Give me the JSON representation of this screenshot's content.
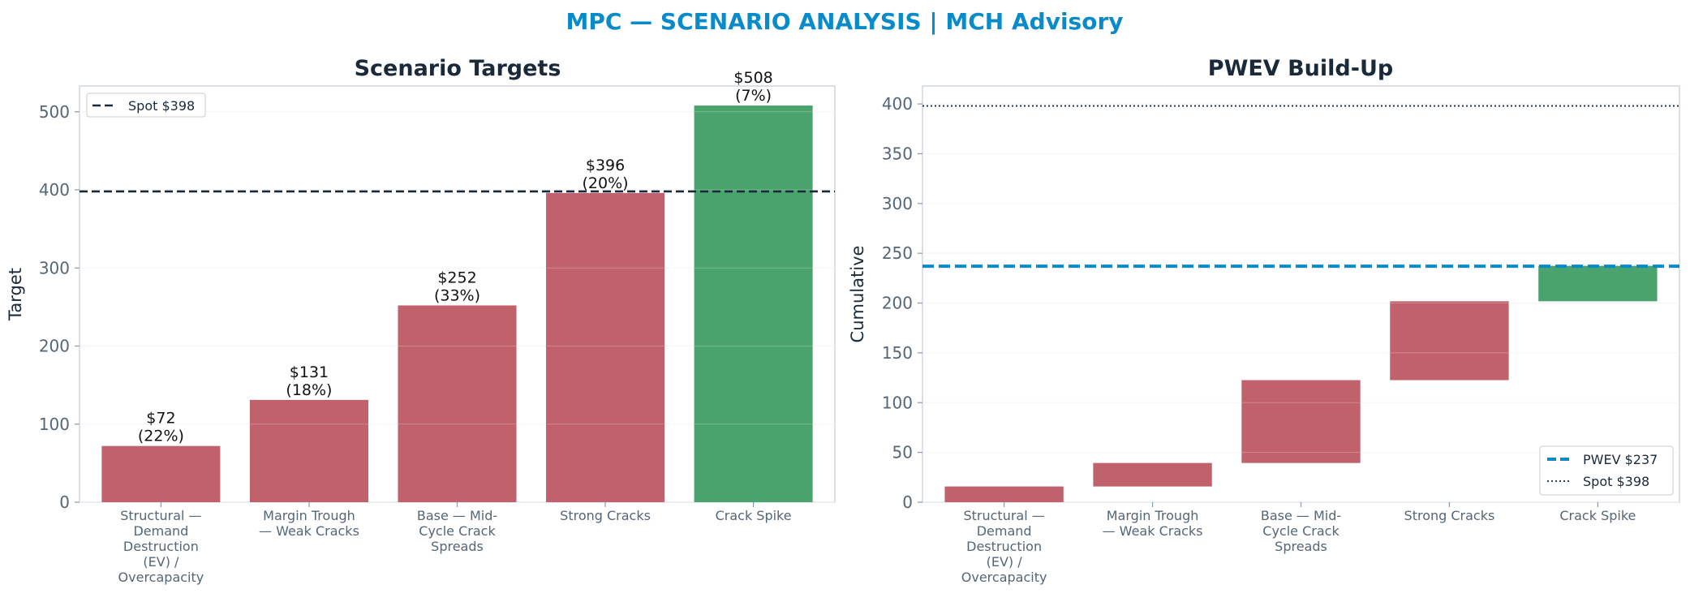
{
  "suptitle": "MPC — SCENARIO ANALYSIS | MCH Advisory",
  "colors": {
    "title": "#0a8bc9",
    "negative": "#c0616b",
    "positive": "#4aa36c",
    "spot_line": "#1a2a3a",
    "pwev_line": "#0a8bc9",
    "frame": "#cdd5de",
    "grid": "#eef1f4"
  },
  "chart_data": [
    {
      "type": "bar",
      "title": "Scenario Targets",
      "xlabel": "",
      "ylabel": "Target",
      "categories": [
        [
          "Structural —",
          "Demand",
          "Destruction",
          "(EV) /",
          "Overcapacity"
        ],
        [
          "Margin Trough",
          "— Weak Cracks"
        ],
        [
          "Base — Mid-",
          "Cycle Crack",
          "Spreads"
        ],
        [
          "Strong Cracks"
        ],
        [
          "Crack Spike"
        ]
      ],
      "values": [
        72,
        131,
        252,
        396,
        508
      ],
      "probabilities": [
        22,
        18,
        33,
        20,
        7
      ],
      "data_labels": [
        [
          "$72",
          "(22%)"
        ],
        [
          "$131",
          "(18%)"
        ],
        [
          "$252",
          "(33%)"
        ],
        [
          "$396",
          "(20%)"
        ],
        [
          "$508",
          "(7%)"
        ]
      ],
      "bar_colors": [
        "negative",
        "negative",
        "negative",
        "negative",
        "positive"
      ],
      "ylim": [
        0,
        533
      ],
      "yticks": [
        0,
        100,
        200,
        300,
        400,
        500
      ],
      "reference_lines": [
        {
          "value": 398,
          "style": "dashed",
          "label": "Spot $398"
        }
      ],
      "legend": {
        "position": "top-left",
        "entries": [
          "Spot $398"
        ]
      },
      "grid": true
    },
    {
      "type": "bar",
      "subtype": "waterfall",
      "title": "PWEV Build-Up",
      "xlabel": "",
      "ylabel": "Cumulative",
      "categories": [
        [
          "Structural —",
          "Demand",
          "Destruction",
          "(EV) /",
          "Overcapacity"
        ],
        [
          "Margin Trough",
          "— Weak Cracks"
        ],
        [
          "Base — Mid-",
          "Cycle Crack",
          "Spreads"
        ],
        [
          "Strong Cracks"
        ],
        [
          "Crack Spike"
        ]
      ],
      "increments": [
        15.8,
        23.6,
        83.2,
        79.2,
        35.6
      ],
      "cumulative": [
        15.8,
        39.4,
        122.6,
        201.8,
        237.4
      ],
      "bar_colors": [
        "negative",
        "negative",
        "negative",
        "negative",
        "positive"
      ],
      "ylim": [
        0,
        418
      ],
      "yticks": [
        0,
        50,
        100,
        150,
        200,
        250,
        300,
        350,
        400
      ],
      "reference_lines": [
        {
          "value": 237,
          "style": "dashed",
          "label": "PWEV $237"
        },
        {
          "value": 398,
          "style": "dotted",
          "label": "Spot $398"
        }
      ],
      "legend": {
        "position": "bottom-right",
        "entries": [
          "PWEV $237",
          "Spot $398"
        ]
      },
      "grid": true
    }
  ]
}
